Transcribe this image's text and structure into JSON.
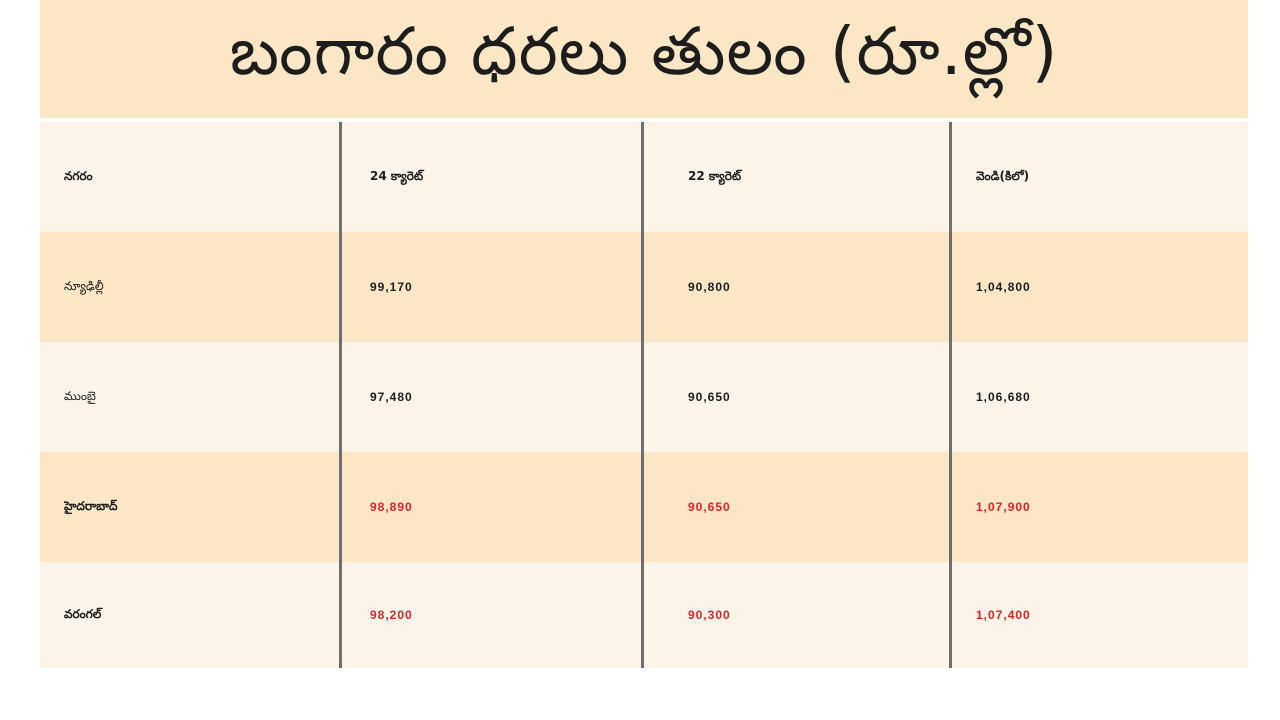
{
  "title": "బంగారం ధరలు తులం (రూ.ల్లో)",
  "table": {
    "headers": [
      "నగరం",
      "24 క్యారెట్",
      "22 క్యారెట్",
      "వెండి(కిలో)"
    ],
    "rows": [
      {
        "city": "న్యూఢిల్లీ",
        "k24": "99,170",
        "k22": "90,800",
        "silver": "1,04,800",
        "highlight": false
      },
      {
        "city": "ముంబై",
        "k24": "97,480",
        "k22": "90,650",
        "silver": "1,06,680",
        "highlight": false
      },
      {
        "city": "హైదరాబాద్",
        "k24": "98,890",
        "k22": "90,650",
        "silver": "1,07,900",
        "highlight": true
      },
      {
        "city": "వరంగల్",
        "k24": "98,200",
        "k22": "90,300",
        "silver": "1,07,400",
        "highlight": true
      }
    ]
  },
  "colors": {
    "highlight_text": "#e0202a",
    "normal_text": "#1d1d1b",
    "title_bg": "#fbe6c6",
    "row_light": "#fdf4e9",
    "row_dark": "#fbe6c6"
  }
}
